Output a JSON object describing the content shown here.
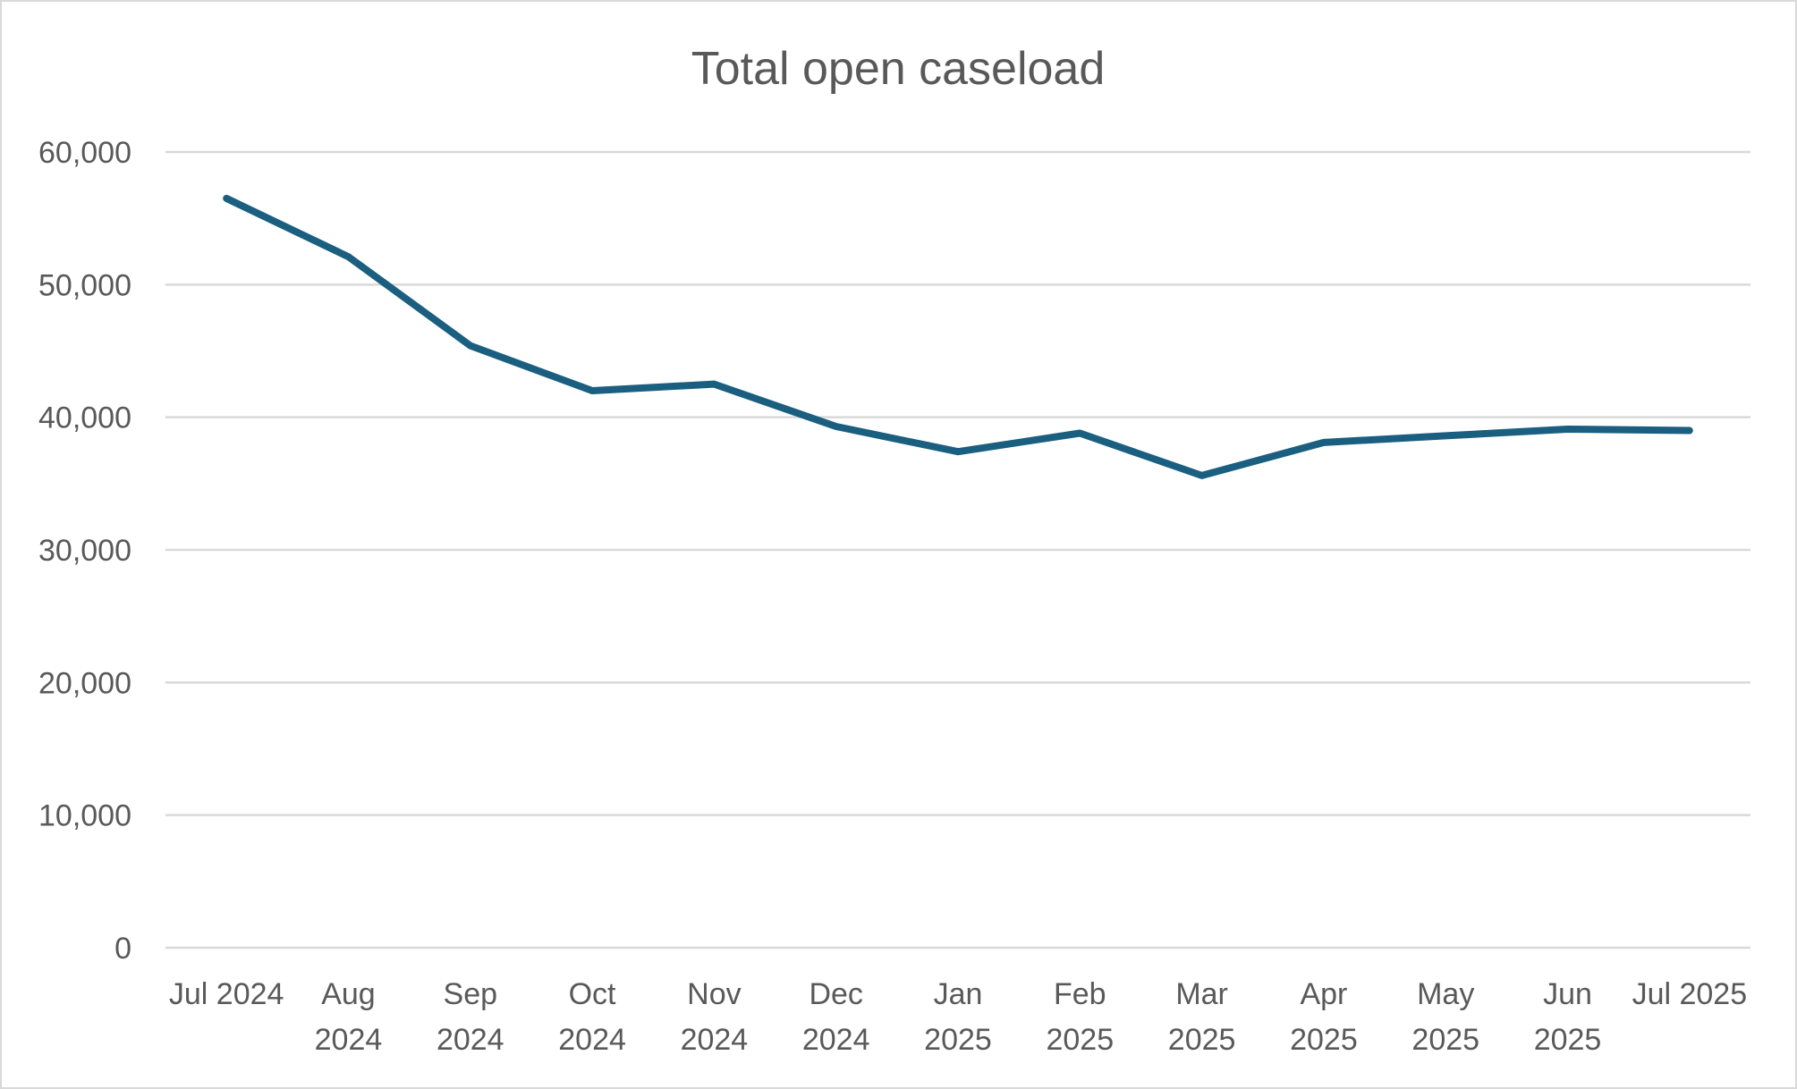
{
  "chart_data": {
    "type": "line",
    "title": "Total open caseload",
    "xlabel": "",
    "ylabel": "",
    "categories": [
      [
        "Jul 2024"
      ],
      [
        "Aug",
        "2024"
      ],
      [
        "Sep",
        "2024"
      ],
      [
        "Oct",
        "2024"
      ],
      [
        "Nov",
        "2024"
      ],
      [
        "Dec",
        "2024"
      ],
      [
        "Jan",
        "2025"
      ],
      [
        "Feb",
        "2025"
      ],
      [
        "Mar",
        "2025"
      ],
      [
        "Apr",
        "2025"
      ],
      [
        "May",
        "2025"
      ],
      [
        "Jun",
        "2025"
      ],
      [
        "Jul 2025"
      ]
    ],
    "series": [
      {
        "values": [
          56500,
          52100,
          45400,
          42000,
          42500,
          39300,
          37400,
          38800,
          35600,
          38100,
          38600,
          39100,
          39000
        ],
        "color": "#1a5e80"
      }
    ],
    "ylim": [
      0,
      60000
    ],
    "yticks": [
      0,
      10000,
      20000,
      30000,
      40000,
      50000,
      60000
    ],
    "ytick_labels": [
      "0",
      "10,000",
      "20,000",
      "30,000",
      "40,000",
      "50,000",
      "60,000"
    ],
    "grid": true,
    "legend": "none"
  }
}
